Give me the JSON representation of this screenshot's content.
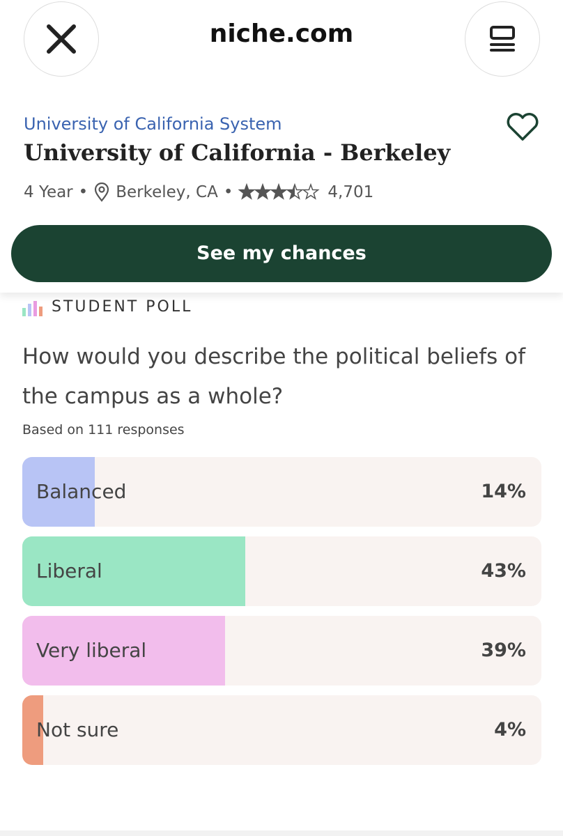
{
  "header": {
    "title": "niche.com"
  },
  "school": {
    "system": "University of California System",
    "name": "University of California - Berkeley",
    "kind": "4 Year",
    "location": "Berkeley, CA",
    "rating": 3.5,
    "rating_max": 5,
    "review_count": "4,701",
    "button": "See my chances"
  },
  "poll": {
    "heading": "STUDENT POLL",
    "question": "How would you describe the political beliefs of the campus as a whole?",
    "responses": "Based on 111 responses",
    "xlim": [
      0,
      100
    ],
    "options": [
      {
        "label": "Balanced",
        "value": 14,
        "value_label": "14%",
        "color": "#b8c4f5"
      },
      {
        "label": "Liberal",
        "value": 43,
        "value_label": "43%",
        "color": "#9ae6c4"
      },
      {
        "label": "Very liberal",
        "value": 39,
        "value_label": "39%",
        "color": "#f2bdec"
      },
      {
        "label": "Not sure",
        "value": 4,
        "value_label": "4%",
        "color": "#ee9c7e"
      }
    ]
  }
}
